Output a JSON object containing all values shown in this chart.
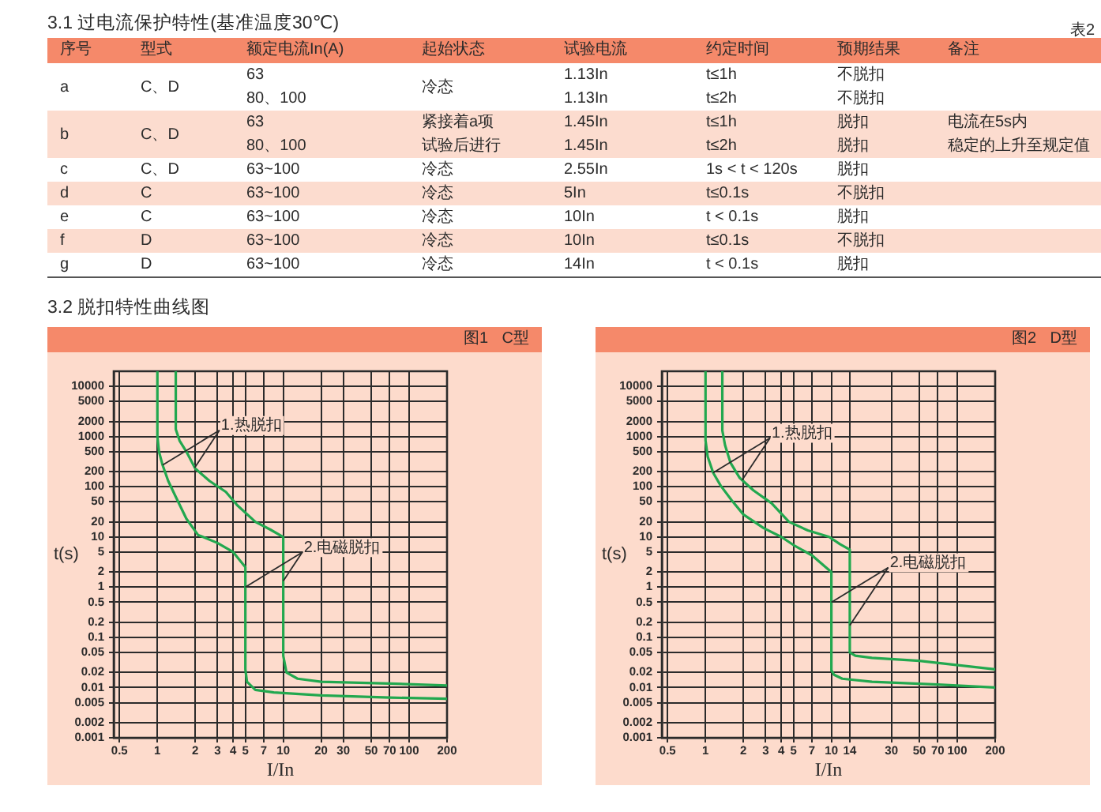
{
  "chart_data": [
    {
      "type": "other",
      "title": "3.1 过电流保护特性(基准温度30℃)",
      "subtitle": "表2",
      "categories": [
        "序号",
        "型式",
        "额定电流In(A)",
        "起始状态",
        "试验电流",
        "约定时间",
        "预期结果",
        "备注"
      ],
      "cell_labels": [
        [
          "a",
          "C、D",
          "63",
          "冷态",
          "1.13In",
          "t≤1h",
          "不脱扣",
          null
        ],
        [
          null,
          null,
          "80、100",
          null,
          "1.13In",
          "t≤2h",
          "不脱扣",
          null
        ],
        [
          "b",
          "C、D",
          "63",
          "紧接着a项",
          "1.45In",
          "t≤1h",
          "脱扣",
          "电流在5s内"
        ],
        [
          null,
          null,
          "80、100",
          "试验后进行",
          "1.45In",
          "t≤2h",
          "脱扣",
          "稳定的上升至规定值"
        ],
        [
          "c",
          "C、D",
          "63~100",
          "冷态",
          "2.55In",
          "1s < t < 120s",
          "脱扣",
          null
        ],
        [
          "d",
          "C",
          "63~100",
          "冷态",
          "5In",
          "t≤0.1s",
          "不脱扣",
          null
        ],
        [
          "e",
          "C",
          "63~100",
          "冷态",
          "10In",
          "t < 0.1s",
          "脱扣",
          null
        ],
        [
          "f",
          "D",
          "63~100",
          "冷态",
          "10In",
          "t≤0.1s",
          "不脱扣",
          null
        ],
        [
          "g",
          "D",
          "63~100",
          "冷态",
          "14In",
          "t < 0.1s",
          "脱扣",
          null
        ]
      ],
      "annotations": [
        "3.2 脱扣特性曲线图"
      ]
    },
    {
      "type": "line",
      "title": "图1 C型",
      "xlabel": "I/In",
      "ylabel": "t(s)",
      "log": "xy",
      "grid": true,
      "xlim": [
        0.45,
        200
      ],
      "ylim": [
        0.001,
        20000
      ],
      "xticks": [
        0.5,
        1,
        2,
        3,
        4,
        5,
        7,
        10,
        20,
        30,
        50,
        70,
        100,
        200
      ],
      "yticks": [
        0.001,
        0.002,
        0.005,
        0.01,
        0.02,
        0.05,
        0.1,
        0.2,
        0.5,
        1,
        2,
        5,
        10,
        20,
        50,
        100,
        200,
        500,
        1000,
        2000,
        5000,
        10000
      ],
      "series": [
        {
          "color": "#22a84f",
          "x": [
            1,
            1,
            1.03,
            1.1,
            1.22,
            1.4,
            1.7,
            2.1,
            3,
            4,
            5,
            5,
            5.15,
            6,
            8.4,
            20,
            70,
            200
          ],
          "values": [
            20000,
            1000,
            500,
            270,
            130,
            63,
            23,
            11,
            7.6,
            5,
            2.5,
            0.023,
            0.013,
            0.009,
            0.008,
            0.007,
            0.0063,
            0.006
          ]
        },
        {
          "color": "#22a84f",
          "x": [
            1.4,
            1.4,
            1.5,
            1.7,
            2,
            2.6,
            3.5,
            4.3,
            6,
            7.9,
            10,
            10,
            10.6,
            13,
            20,
            70,
            200
          ],
          "values": [
            20000,
            1400,
            830,
            500,
            230,
            130,
            79,
            43,
            20,
            14,
            10,
            0.043,
            0.02,
            0.015,
            0.013,
            0.012,
            0.011
          ]
        }
      ],
      "annotations": [
        {
          "text": "1.热脱扣",
          "x": 1.1,
          "y": 270
        },
        {
          "text": "2.电磁脱扣",
          "x": 5,
          "y": 1
        }
      ]
    },
    {
      "type": "line",
      "title": "图2 D型",
      "xlabel": "I/In",
      "ylabel": "t(s)",
      "log": "xy",
      "grid": true,
      "xlim": [
        0.45,
        200
      ],
      "ylim": [
        0.001,
        20000
      ],
      "xticks": [
        0.5,
        1,
        2,
        3,
        4,
        5,
        7,
        10,
        14,
        30,
        50,
        70,
        100,
        200
      ],
      "yticks": [
        0.001,
        0.002,
        0.005,
        0.01,
        0.02,
        0.05,
        0.1,
        0.2,
        0.5,
        1,
        2,
        5,
        10,
        20,
        50,
        100,
        200,
        500,
        1000,
        2000,
        5000,
        10000
      ],
      "series": [
        {
          "color": "#22a84f",
          "x": [
            1,
            1,
            1.04,
            1.15,
            1.32,
            1.62,
            2,
            2.9,
            4,
            5,
            7,
            9,
            10,
            10,
            10.5,
            12.2,
            21,
            70,
            200
          ],
          "values": [
            20000,
            840,
            400,
            190,
            105,
            53,
            28,
            15,
            10,
            6.9,
            4.3,
            2.5,
            2,
            0.022,
            0.018,
            0.015,
            0.013,
            0.0115,
            0.01
          ]
        },
        {
          "color": "#22a84f",
          "x": [
            1.36,
            1.36,
            1.43,
            1.58,
            1.87,
            2.4,
            3.35,
            4.6,
            6.5,
            9.6,
            11.7,
            14,
            14,
            15.5,
            21,
            50,
            200
          ],
          "values": [
            20000,
            1320,
            670,
            300,
            150,
            85,
            47,
            20,
            13.5,
            10,
            7.2,
            5.6,
            0.05,
            0.043,
            0.039,
            0.034,
            0.023
          ]
        }
      ],
      "annotations": [
        {
          "text": "1.热脱扣",
          "x": 1.15,
          "y": 190
        },
        {
          "text": "2.电磁脱扣",
          "x": 10,
          "y": 0.5
        }
      ]
    }
  ]
}
